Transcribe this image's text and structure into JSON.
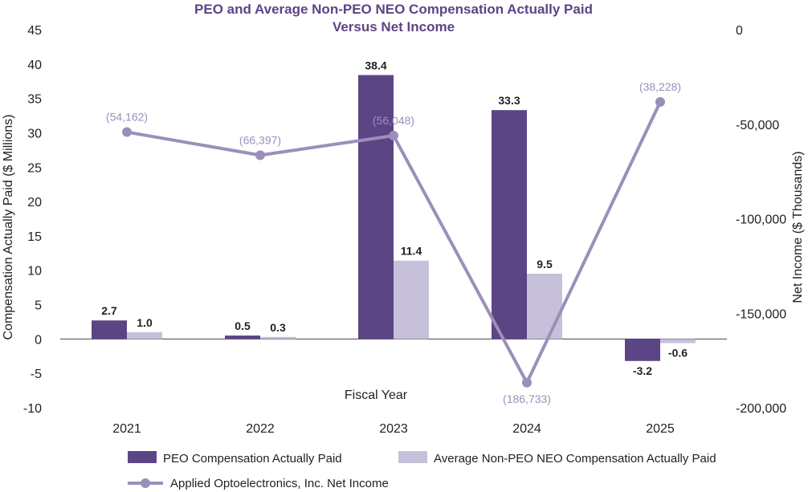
{
  "colors": {
    "peo": "#5b4585",
    "non_peo": "#c7c0db",
    "line": "#9b8fba",
    "title": "#5b4585",
    "axis": "#444444"
  },
  "chart_data": {
    "type": "bar",
    "title_line1": "PEO and Average Non-PEO NEO Compensation Actually Paid",
    "title_line2": "Versus Net Income",
    "xlabel": "Fiscal Year",
    "ylabel": "Compensation Actually Paid ($ Millions)",
    "y2label": "Net Income ($ Thousands)",
    "categories": [
      "2021",
      "2022",
      "2023",
      "2024",
      "2025"
    ],
    "ylim": [
      -10,
      45
    ],
    "yticks": [
      -10,
      -5,
      0,
      5,
      10,
      15,
      20,
      25,
      30,
      35,
      40,
      45
    ],
    "y2lim": [
      -200000,
      0
    ],
    "y2ticks": [
      0,
      -50000,
      -100000,
      -150000,
      -200000
    ],
    "y2tick_labels": [
      "0",
      "-50,000",
      "-100,000",
      "-150,000",
      "-200,000"
    ],
    "series": [
      {
        "name": "PEO Compensation Actually Paid",
        "kind": "bar",
        "values": [
          2.7,
          0.5,
          38.4,
          33.3,
          -3.2
        ],
        "labels": [
          "2.7",
          "0.5",
          "38.4",
          "33.3",
          "-3.2"
        ]
      },
      {
        "name": "Average Non-PEO NEO Compensation Actually Paid",
        "kind": "bar",
        "values": [
          1.0,
          0.3,
          11.4,
          9.5,
          -0.6
        ],
        "labels": [
          "1.0",
          "0.3",
          "11.4",
          "9.5",
          "-0.6"
        ]
      },
      {
        "name": "Applied Optoelectronics, Inc. Net Income",
        "kind": "line",
        "axis": "right",
        "values": [
          -54162,
          -66397,
          -56048,
          -186733,
          -38228
        ],
        "labels": [
          "(54,162)",
          "(66,397)",
          "(56,048)",
          "(186,733)",
          "(38,228)"
        ]
      }
    ],
    "legend_position": "bottom"
  }
}
